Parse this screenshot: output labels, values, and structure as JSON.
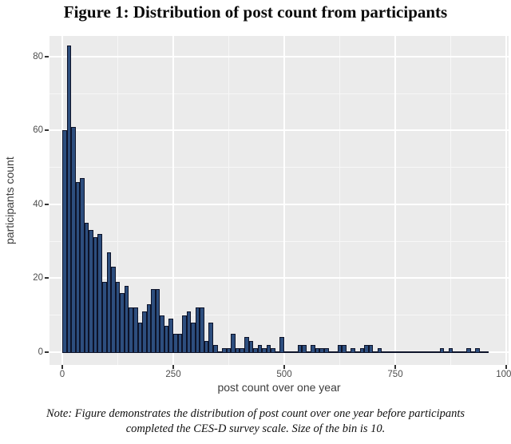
{
  "figure": {
    "title": "Figure 1: Distribution of post count from participants"
  },
  "note": {
    "line1": "Note: Figure demonstrates the distribution of post count over one year before participants",
    "line2": "completed the CES-D survey scale. Size of the bin is 10."
  },
  "chart_data": {
    "type": "bar",
    "subtype": "histogram",
    "title": "Figure 1: Distribution of post count from participants",
    "xlabel": "post count over one year",
    "ylabel": "participants count",
    "bin_width": 10,
    "bin_start": 0,
    "counts": [
      60,
      83,
      61,
      46,
      47,
      35,
      33,
      31,
      32,
      19,
      27,
      23,
      19,
      16,
      18,
      12,
      12,
      8,
      11,
      13,
      17,
      17,
      10,
      7,
      9,
      5,
      5,
      10,
      11,
      8,
      12,
      12,
      3,
      8,
      2,
      0,
      1,
      1,
      5,
      1,
      1,
      4,
      3,
      1,
      2,
      1,
      2,
      1,
      0,
      4,
      0,
      0,
      0,
      2,
      2,
      0,
      2,
      1,
      1,
      1,
      0,
      0,
      2,
      2,
      0,
      1,
      0,
      1,
      2,
      2,
      0,
      1,
      0,
      0,
      0,
      0,
      0,
      0,
      0,
      0,
      0,
      0,
      0,
      0,
      0,
      1,
      0,
      1,
      0,
      0,
      0,
      1,
      0,
      1,
      0,
      0
    ],
    "x_ticks": [
      0,
      250,
      500,
      750,
      1000
    ],
    "x_minor_ticks": [
      125,
      375,
      625,
      875
    ],
    "y_ticks": [
      0,
      20,
      40,
      60,
      80
    ],
    "y_minor_ticks": [
      10,
      30,
      50,
      70
    ],
    "xlim": [
      -28.8,
      1005.4
    ],
    "ylim": [
      -3.5,
      85.6
    ],
    "grid": true,
    "legend": "none",
    "colors": {
      "bar_fill": "#2d4e7e",
      "bar_stroke": "#0d1329",
      "panel_background": "#ebebeb",
      "grid_major": "#ffffff",
      "grid_minor": "#f7f7f7",
      "tick_label": "#4d4d4d",
      "axis_title": "#3c3c3c"
    }
  }
}
